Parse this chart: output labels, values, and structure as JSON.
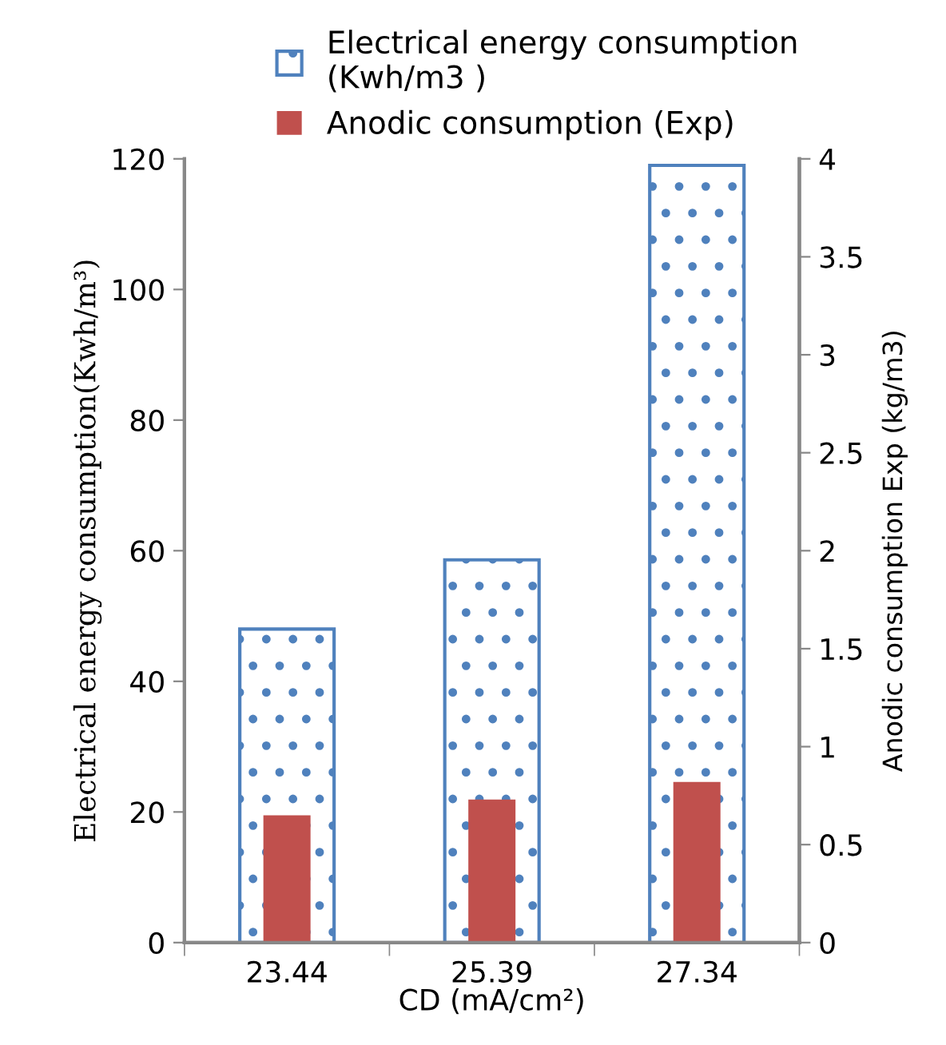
{
  "chart_data": {
    "type": "bar",
    "categories": [
      "23.44",
      "25.39",
      "27.34"
    ],
    "xlabel": "CD (mA/cm²)",
    "ylabel": "Electrical energy consumption(Kwh/m³)",
    "y2label": "Anodic consumption Exp (kg/m3)",
    "series": [
      {
        "name": "Electrical energy consumption\n(Kwh/m3 )",
        "color": "#4f81bd",
        "values": [
          48,
          58.6,
          119
        ]
      },
      {
        "name": "Anodic consumption (Exp)",
        "color": "#c0504d",
        "values": [
          0.65,
          0.73,
          0.82
        ],
        "axis": "y2"
      }
    ],
    "ylim": [
      0,
      120
    ],
    "yticks": [
      0,
      20,
      40,
      60,
      80,
      100,
      120
    ],
    "y2lim": [
      0,
      4
    ],
    "y2ticks": [
      0,
      {
        "value": 0.5,
        "label": "0.5"
      },
      1,
      {
        "value": 1.5,
        "label": "1.5"
      },
      2,
      {
        "value": 2.5,
        "label": "2.5"
      },
      3,
      {
        "value": 3.5,
        "label": "3.5"
      },
      4
    ],
    "legend": "top",
    "grid": false
  }
}
